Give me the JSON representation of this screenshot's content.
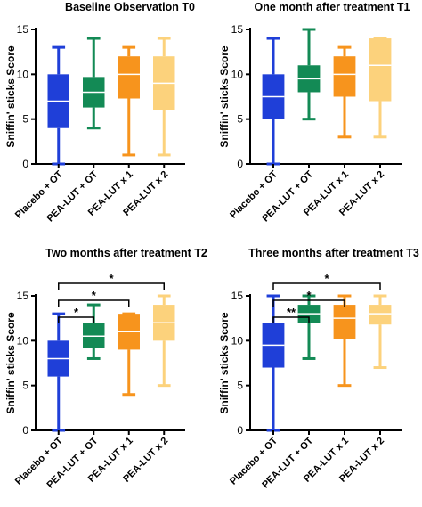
{
  "chart_data": [
    {
      "type": "boxplot",
      "title": "Baseline Observation T0",
      "ylabel": "Sniffin' sticks Score",
      "ylim": [
        0,
        15
      ],
      "yticks": [
        "0",
        "5",
        "10",
        "15"
      ],
      "categories": [
        "Placebo + OT",
        "PEA-LUT + OT",
        "PEA-LUT x 1",
        "PEA-LUT x 2"
      ],
      "colors": [
        "#1f3fd8",
        "#138a55",
        "#f7941d",
        "#fcd27c"
      ],
      "boxes": [
        {
          "min": 0,
          "q1": 4,
          "median": 7,
          "q3": 10,
          "max": 13
        },
        {
          "min": 4,
          "q1": 6.3,
          "median": 8,
          "q3": 9.7,
          "max": 14
        },
        {
          "min": 1,
          "q1": 7.3,
          "median": 10,
          "q3": 12,
          "max": 13
        },
        {
          "min": 1,
          "q1": 6,
          "median": 9,
          "q3": 12,
          "max": 14
        }
      ],
      "significance": []
    },
    {
      "type": "boxplot",
      "title": "One month after treatment T1",
      "ylabel": "Sniffin' sticks Score",
      "ylim": [
        0,
        15
      ],
      "yticks": [
        "0",
        "5",
        "10",
        "15"
      ],
      "categories": [
        "Placebo + OT",
        "PEA-LUT + OT",
        "PEA-LUT x 1",
        "PEA-LUT x 2"
      ],
      "colors": [
        "#1f3fd8",
        "#138a55",
        "#f7941d",
        "#fcd27c"
      ],
      "boxes": [
        {
          "min": 0,
          "q1": 5,
          "median": 7.5,
          "q3": 10,
          "max": 14
        },
        {
          "min": 5,
          "q1": 8,
          "median": 9.5,
          "q3": 11,
          "max": 15
        },
        {
          "min": 3,
          "q1": 7.5,
          "median": 10,
          "q3": 12,
          "max": 13
        },
        {
          "min": 3,
          "q1": 7,
          "median": 11,
          "q3": 14,
          "max": 14
        }
      ],
      "significance": []
    },
    {
      "type": "boxplot",
      "title": "Two months after treatment T2",
      "ylabel": "Sniffin' sticks Score",
      "ylim": [
        0,
        15
      ],
      "yticks": [
        "0",
        "5",
        "10",
        "15"
      ],
      "categories": [
        "Placebo + OT",
        "PEA-LUT + OT",
        "PEA-LUT x 1",
        "PEA-LUT x 2"
      ],
      "colors": [
        "#1f3fd8",
        "#138a55",
        "#f7941d",
        "#fcd27c"
      ],
      "boxes": [
        {
          "min": 0,
          "q1": 6,
          "median": 8,
          "q3": 10,
          "max": 13
        },
        {
          "min": 8,
          "q1": 9.2,
          "median": 10.5,
          "q3": 12,
          "max": 14
        },
        {
          "min": 4,
          "q1": 9,
          "median": 11,
          "q3": 13,
          "max": 13
        },
        {
          "min": 5,
          "q1": 10,
          "median": 12,
          "q3": 14,
          "max": 15
        }
      ],
      "significance": [
        {
          "from": 0,
          "to": 1,
          "label": "*"
        },
        {
          "from": 0,
          "to": 2,
          "label": "*"
        },
        {
          "from": 0,
          "to": 3,
          "label": "*"
        }
      ]
    },
    {
      "type": "boxplot",
      "title": "Three months after treatment T3",
      "ylabel": "Sniffin' sticks Score",
      "ylim": [
        0,
        15
      ],
      "yticks": [
        "0",
        "5",
        "10",
        "15"
      ],
      "categories": [
        "Placebo + OT",
        "PEA-LUT + OT",
        "PEA-LUT x 1",
        "PEA-LUT x 2"
      ],
      "colors": [
        "#1f3fd8",
        "#138a55",
        "#f7941d",
        "#fcd27c"
      ],
      "boxes": [
        {
          "min": 0,
          "q1": 7,
          "median": 9.5,
          "q3": 12,
          "max": 15
        },
        {
          "min": 8,
          "q1": 12,
          "median": 13,
          "q3": 14,
          "max": 15
        },
        {
          "min": 5,
          "q1": 10.2,
          "median": 12.5,
          "q3": 14,
          "max": 15
        },
        {
          "min": 7,
          "q1": 11.8,
          "median": 13,
          "q3": 14,
          "max": 15
        }
      ],
      "significance": [
        {
          "from": 0,
          "to": 1,
          "label": "**"
        },
        {
          "from": 0,
          "to": 2,
          "label": "*"
        },
        {
          "from": 0,
          "to": 3,
          "label": "*"
        }
      ]
    }
  ]
}
